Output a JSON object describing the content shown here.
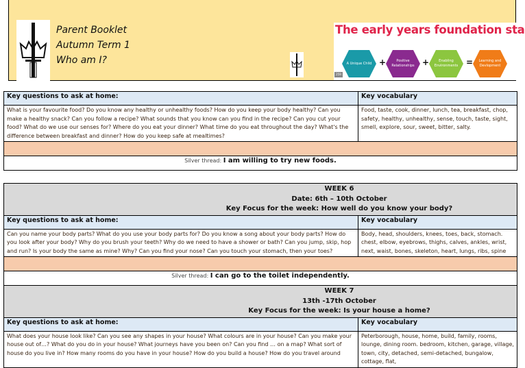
{
  "header": {
    "title_lines": [
      "Parent Booklet",
      "Autumn Term 1",
      "Who am I?"
    ],
    "eyfs": {
      "title": "The early years foundation stage",
      "badge": "259",
      "hexes": [
        {
          "label": "A Unique Child",
          "color": "#1a9aa8"
        },
        {
          "label": "Positive Relationships",
          "color": "#8a2a8f"
        },
        {
          "label": "Enabling Environments",
          "color": "#8cc63f"
        },
        {
          "label": "Learning and Devlopment",
          "color": "#f07c18"
        }
      ],
      "ops": [
        "+",
        "+",
        "="
      ]
    }
  },
  "section1": {
    "questions_header": "Key questions to ask at home:",
    "vocab_header": "Key vocabulary",
    "questions": "What is your favourite food? Do you know any healthy or unhealthy foods? How do you keep your body healthy? Can you make a healthy snack? Can you follow a recipe? What sounds that you know can you find in the recipe? Can you cut your food? What do we use our senses for? Where do you eat your dinner? What time do you eat throughout the day? What's the difference between breakfast and dinner? How do you keep safe at mealtimes?",
    "vocab": "Food, taste, cook, dinner, lunch, tea, breakfast, chop, safety, healthy, unhealthy, sense, touch, taste, sight, smell, explore, sour, sweet, bitter, salty.",
    "silver_label": "Silver thread:",
    "silver_value": "I am willing to try new foods."
  },
  "week6": {
    "week": "WEEK 6",
    "date": "Date: 6th – 10th October",
    "focus": "Key Focus for the week: How well do you know your body?",
    "questions_header": "Key questions to ask at home:",
    "vocab_header": "Key vocabulary",
    "questions": "Can you name your body parts? What do you use your body parts for? Do you know a song about your body parts? How do you look after your body? Why do you brush your teeth? Why do we need to have a shower or bath? Can you jump, skip, hop and run? Is your body the same as mine? Why? Can you find your nose? Can you touch your stomach, then your toes?",
    "vocab": "Body, head, shoulders, knees, toes, back, stomach. chest, elbow, eyebrows, thighs, calves, ankles, wrist, next, waist, bones, skeleton, heart, lungs, ribs, spine",
    "silver_label": "Silver thread:",
    "silver_value": "I can go to the toilet independently."
  },
  "week7": {
    "week": "WEEK 7",
    "date": "13th -17th October",
    "focus": "Key Focus for the week: Is your house a home?",
    "questions_header": "Key questions to ask at home:",
    "vocab_header": "Key vocabulary",
    "questions": "What does your house look like? Can you see any shapes in your house? What colours are in your house? Can you make your house out of…? What do you do in your house? What journeys have you been on? Can you find … on a map? What sort of house do you live in? How many rooms do you have in your house? How do you build a house? How do you travel around",
    "vocab": "Peterborough, house, home, build, family, rooms, lounge, dining room. bedroom, kitchen, garage, village, town, city, detached, semi-detached, bungalow, cottage, flat,"
  }
}
